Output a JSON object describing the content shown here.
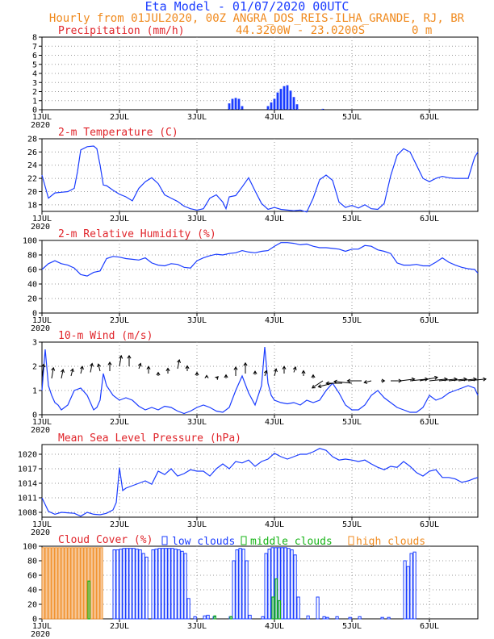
{
  "header": {
    "title": "Eta Model - 01/07/2020 00UTC",
    "subtitle": "Hourly from 01JUL2020, 00Z  ANGRA_DOS_REIS-ILHA_GRANDE, RJ, BR",
    "coords": "44.3200W - 23.0200S",
    "elevation": "0  m"
  },
  "colors": {
    "series": "#1a3cff",
    "title": "#e0242a",
    "header": "#f08a1e",
    "mid": "#16b416",
    "high": "#f08a1e"
  },
  "x_axis": {
    "labels": [
      "1JUL",
      "2JUL",
      "3JUL",
      "4JUL",
      "5JUL",
      "6JUL"
    ],
    "year": "2020",
    "hours": [
      0,
      24,
      48,
      72,
      96,
      120
    ],
    "range": [
      0,
      135
    ]
  },
  "chart_data": [
    {
      "type": "bar",
      "title": "Precipitation (mm/h)",
      "ylim": [
        0,
        8
      ],
      "yticks": [
        "0",
        "1",
        "2",
        "3",
        "4",
        "5",
        "6",
        "7",
        "8"
      ],
      "x": [
        58,
        59,
        60,
        61,
        62,
        70,
        71,
        72,
        73,
        74,
        75,
        76,
        77,
        78,
        79,
        87
      ],
      "values": [
        0.7,
        1.2,
        1.3,
        1.2,
        0.4,
        0.4,
        0.8,
        1.2,
        1.9,
        2.3,
        2.6,
        2.7,
        2.1,
        1.4,
        0.6,
        0.1
      ]
    },
    {
      "type": "line",
      "title": "2-m Temperature (C)",
      "ylim": [
        17,
        28
      ],
      "yticks": [
        "18",
        "20",
        "22",
        "24",
        "26",
        "28"
      ],
      "x": [
        0,
        2,
        4,
        6,
        8,
        10,
        11,
        12,
        14,
        16,
        17,
        18,
        19,
        20,
        22,
        24,
        26,
        28,
        30,
        32,
        34,
        36,
        38,
        40,
        42,
        44,
        46,
        48,
        50,
        52,
        54,
        56,
        57,
        58,
        60,
        62,
        64,
        66,
        68,
        70,
        72,
        74,
        76,
        78,
        80,
        82,
        84,
        86,
        88,
        90,
        92,
        94,
        96,
        98,
        100,
        102,
        104,
        106,
        108,
        110,
        112,
        114,
        116,
        118,
        120,
        122,
        124,
        126,
        128,
        130,
        132,
        134,
        135
      ],
      "values": [
        22.5,
        19,
        19.8,
        19.9,
        20,
        20.5,
        23,
        26.3,
        26.8,
        26.9,
        26.5,
        24,
        21,
        20.9,
        20.2,
        19.6,
        19.2,
        18.6,
        20.5,
        21.5,
        22.1,
        21.2,
        19.5,
        19,
        18.5,
        17.8,
        17.4,
        17.2,
        17.4,
        19,
        19.5,
        18.4,
        17.4,
        19.2,
        19.4,
        20.7,
        22.1,
        20.1,
        18.2,
        17.3,
        17.6,
        17.3,
        17.2,
        17.1,
        17.2,
        16.9,
        19,
        21.8,
        22.5,
        21.7,
        18.4,
        17.6,
        17.9,
        17.5,
        18,
        17.4,
        17.3,
        18.2,
        22.4,
        25.5,
        26.5,
        26,
        24,
        22,
        21.5,
        22,
        22.3,
        22.1,
        22,
        22,
        22,
        25.2,
        26
      ]
    },
    {
      "type": "line",
      "title": "2-m Relative Humidity (%)",
      "ylim": [
        0,
        100
      ],
      "yticks": [
        "0",
        "20",
        "40",
        "60",
        "80",
        "100"
      ],
      "x": [
        0,
        2,
        4,
        6,
        8,
        10,
        12,
        14,
        16,
        18,
        20,
        22,
        24,
        26,
        28,
        30,
        32,
        34,
        36,
        38,
        40,
        42,
        44,
        46,
        48,
        50,
        52,
        54,
        56,
        58,
        60,
        62,
        64,
        66,
        68,
        70,
        72,
        74,
        76,
        78,
        80,
        82,
        84,
        86,
        88,
        90,
        92,
        94,
        96,
        98,
        100,
        102,
        104,
        106,
        108,
        110,
        112,
        114,
        116,
        118,
        120,
        122,
        124,
        126,
        128,
        130,
        132,
        134,
        135
      ],
      "values": [
        60,
        68,
        72,
        68,
        66,
        62,
        53,
        51,
        56,
        58,
        75,
        78,
        77,
        75,
        74,
        73,
        76,
        69,
        66,
        65,
        68,
        67,
        63,
        62,
        72,
        76,
        79,
        81,
        80,
        82,
        83,
        86,
        84,
        83,
        85,
        86,
        92,
        97,
        97,
        96,
        94,
        95,
        92,
        90,
        90,
        89,
        88,
        85,
        88,
        88,
        93,
        92,
        87,
        85,
        82,
        69,
        66,
        66,
        67,
        65,
        65,
        70,
        76,
        70,
        66,
        63,
        61,
        60,
        55
      ]
    },
    {
      "type": "line",
      "title": "10-m Wind (m/s)",
      "ylim": [
        0,
        3
      ],
      "yticks": [
        "0",
        "1",
        "2",
        "3"
      ],
      "x": [
        0,
        1,
        2,
        3,
        4,
        5,
        6,
        8,
        10,
        12,
        14,
        16,
        17,
        18,
        19,
        20,
        22,
        24,
        26,
        28,
        30,
        32,
        34,
        36,
        38,
        40,
        42,
        44,
        46,
        48,
        50,
        52,
        54,
        56,
        58,
        60,
        62,
        64,
        66,
        68,
        69,
        70,
        71,
        72,
        74,
        76,
        78,
        80,
        82,
        84,
        86,
        88,
        90,
        92,
        94,
        96,
        98,
        100,
        102,
        104,
        106,
        108,
        110,
        112,
        114,
        116,
        118,
        120,
        122,
        124,
        126,
        128,
        130,
        132,
        134,
        135
      ],
      "values": [
        1.0,
        2.7,
        1.2,
        0.8,
        0.5,
        0.4,
        0.2,
        0.4,
        1.0,
        1.1,
        0.8,
        0.2,
        0.3,
        0.6,
        1.7,
        1.2,
        0.8,
        0.6,
        0.7,
        0.6,
        0.35,
        0.2,
        0.3,
        0.2,
        0.35,
        0.3,
        0.15,
        0.05,
        0.15,
        0.3,
        0.4,
        0.3,
        0.15,
        0.1,
        0.3,
        1.0,
        1.6,
        0.9,
        0.4,
        1.2,
        2.8,
        1.3,
        0.8,
        0.6,
        0.5,
        0.45,
        0.5,
        0.4,
        0.6,
        0.5,
        0.6,
        1.0,
        1.3,
        0.9,
        0.4,
        0.2,
        0.2,
        0.4,
        0.8,
        1.0,
        0.7,
        0.5,
        0.3,
        0.2,
        0.1,
        0.1,
        0.3,
        0.8,
        0.6,
        0.7,
        0.9,
        1.0,
        1.1,
        1.2,
        1.1,
        0.8
      ],
      "arrow_baseline": [
        1.5,
        1.5,
        1.5,
        1.6,
        1.7,
        1.75,
        1.8,
        1.8,
        2.0,
        2.0,
        1.9,
        1.7,
        1.6,
        1.7,
        1.9,
        1.8,
        1.6,
        1.55,
        1.5,
        1.5,
        1.6,
        1.7,
        1.65,
        1.6,
        1.6,
        1.7,
        1.75,
        1.6,
        1.5,
        1.4,
        1.3,
        1.3,
        1.3,
        1.4,
        1.4,
        1.4,
        1.4,
        1.4,
        1.4,
        1.4,
        1.4,
        1.4,
        1.4,
        1.4,
        1.4
      ],
      "arrow_u": [
        0.1,
        0.1,
        0.1,
        0.1,
        0.1,
        0.1,
        -0.1,
        0.0,
        0.1,
        0.0,
        0.1,
        0.0,
        0.0,
        0.0,
        0.1,
        0.0,
        0.0,
        0.0,
        0.1,
        0.0,
        0.0,
        0.0,
        0.0,
        0.1,
        0.1,
        0.0,
        0.1,
        0.0,
        0.0,
        -0.6,
        -0.8,
        -0.9,
        -1.0,
        -0.8,
        -0.4,
        0.2,
        0.6,
        0.8,
        1.0,
        1.0,
        1.0,
        1.0,
        1.0,
        1.0,
        1.0
      ],
      "arrow_v": [
        0.8,
        0.6,
        0.5,
        0.4,
        0.4,
        0.5,
        0.4,
        0.5,
        0.6,
        0.6,
        0.3,
        0.4,
        0.2,
        0.3,
        0.5,
        0.3,
        0.2,
        0.1,
        0.1,
        0.2,
        0.5,
        0.6,
        0.2,
        0.3,
        0.4,
        0.4,
        0.3,
        0.3,
        0.2,
        -0.4,
        -0.2,
        0.0,
        0.1,
        0.0,
        -0.1,
        0.0,
        0.0,
        0.1,
        0.1,
        0.2,
        0.1,
        0.1,
        0.1,
        0.1,
        0.1
      ]
    },
    {
      "type": "line",
      "title": "Mean Sea Level Pressure (hPa)",
      "ylim": [
        1007,
        1022
      ],
      "yticks": [
        "1008",
        "1011",
        "1014",
        "1017",
        "1020"
      ],
      "x": [
        0,
        2,
        4,
        6,
        8,
        10,
        12,
        14,
        16,
        18,
        20,
        22,
        23,
        24,
        25,
        26,
        28,
        30,
        32,
        34,
        36,
        38,
        40,
        42,
        44,
        46,
        48,
        50,
        52,
        54,
        56,
        58,
        60,
        62,
        64,
        66,
        68,
        70,
        72,
        74,
        76,
        78,
        80,
        82,
        84,
        86,
        88,
        90,
        92,
        94,
        96,
        98,
        100,
        102,
        104,
        106,
        108,
        110,
        112,
        114,
        116,
        118,
        120,
        122,
        124,
        126,
        128,
        130,
        132,
        134,
        135
      ],
      "values": [
        1011,
        1008.2,
        1007.6,
        1008,
        1007.9,
        1007.8,
        1007.2,
        1008,
        1007.6,
        1007.5,
        1007.8,
        1008.5,
        1010,
        1017.2,
        1012.5,
        1013,
        1013.5,
        1014,
        1014.5,
        1013.8,
        1016.5,
        1015.8,
        1017,
        1015.5,
        1016,
        1016.8,
        1016.5,
        1016.5,
        1015.5,
        1017,
        1018,
        1017,
        1018.5,
        1018.2,
        1018.8,
        1017.5,
        1018.5,
        1019,
        1020.2,
        1019.5,
        1019,
        1019.5,
        1020,
        1020,
        1020.5,
        1021.2,
        1020.8,
        1019.5,
        1018.8,
        1019,
        1018.8,
        1018.5,
        1018.8,
        1018,
        1017.3,
        1016.8,
        1017.5,
        1017.3,
        1018.5,
        1017.5,
        1016.2,
        1015.5,
        1016.5,
        1016.8,
        1015.2,
        1015.2,
        1014.9,
        1014.2,
        1014.5,
        1015,
        1015.2
      ]
    },
    {
      "type": "bar",
      "title": "Cloud Cover (%)",
      "legend": [
        "low clouds",
        "middle clouds",
        "high clouds"
      ],
      "ylim": [
        0,
        100
      ],
      "yticks": [
        "0",
        "20",
        "40",
        "60",
        "80",
        "100"
      ],
      "low": [
        [
          22,
          95
        ],
        [
          23,
          95
        ],
        [
          24,
          96
        ],
        [
          25,
          97
        ],
        [
          26,
          97
        ],
        [
          27,
          97
        ],
        [
          28,
          97
        ],
        [
          29,
          96
        ],
        [
          30,
          95
        ],
        [
          31,
          90
        ],
        [
          32,
          85
        ],
        [
          34,
          95
        ],
        [
          35,
          96
        ],
        [
          36,
          97
        ],
        [
          37,
          97
        ],
        [
          38,
          97
        ],
        [
          39,
          97
        ],
        [
          40,
          97
        ],
        [
          41,
          96
        ],
        [
          42,
          95
        ],
        [
          43,
          93
        ],
        [
          44,
          90
        ],
        [
          45,
          28
        ],
        [
          47,
          3
        ],
        [
          50,
          4
        ],
        [
          51,
          5
        ],
        [
          53,
          3
        ],
        [
          58,
          3
        ],
        [
          59,
          80
        ],
        [
          60,
          95
        ],
        [
          61,
          97
        ],
        [
          62,
          96
        ],
        [
          63,
          80
        ],
        [
          64,
          5
        ],
        [
          68,
          3
        ],
        [
          69,
          90
        ],
        [
          70,
          96
        ],
        [
          71,
          98
        ],
        [
          72,
          98
        ],
        [
          73,
          98
        ],
        [
          74,
          98
        ],
        [
          75,
          98
        ],
        [
          76,
          97
        ],
        [
          77,
          95
        ],
        [
          78,
          88
        ],
        [
          79,
          30
        ],
        [
          82,
          4
        ],
        [
          85,
          30
        ],
        [
          87,
          3
        ],
        [
          88,
          2
        ],
        [
          91,
          3
        ],
        [
          95,
          2
        ],
        [
          98,
          3
        ],
        [
          105,
          2
        ],
        [
          107,
          2
        ],
        [
          112,
          80
        ],
        [
          113,
          72
        ],
        [
          114,
          90
        ],
        [
          115,
          92
        ]
      ],
      "mid": [
        [
          14,
          52
        ],
        [
          53,
          4
        ],
        [
          58,
          3
        ],
        [
          71,
          30
        ],
        [
          72,
          55
        ],
        [
          73,
          25
        ]
      ],
      "high": [
        [
          0,
          98
        ],
        [
          1,
          98
        ],
        [
          2,
          98
        ],
        [
          3,
          98
        ],
        [
          4,
          98
        ],
        [
          5,
          98
        ],
        [
          6,
          98
        ],
        [
          7,
          98
        ],
        [
          8,
          98
        ],
        [
          9,
          98
        ],
        [
          10,
          98
        ],
        [
          11,
          98
        ],
        [
          12,
          98
        ],
        [
          13,
          98
        ],
        [
          14,
          98
        ],
        [
          15,
          98
        ],
        [
          16,
          98
        ],
        [
          17,
          98
        ],
        [
          18,
          98
        ]
      ]
    }
  ]
}
